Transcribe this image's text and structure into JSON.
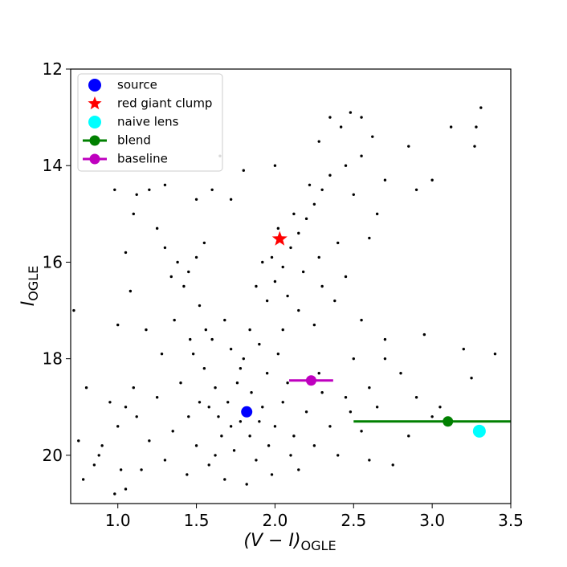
{
  "chart_data": {
    "type": "scatter",
    "xlabel": "(V − I)",
    "xlabel_sub": "OGLE",
    "ylabel": "I",
    "ylabel_sub": "OGLE",
    "xlim": [
      0.7,
      3.5
    ],
    "ylim": [
      21,
      12
    ],
    "xticks": [
      {
        "value": 1,
        "label": "1.0"
      },
      1.5,
      {
        "value": 2,
        "label": "2.0"
      },
      2.5,
      {
        "value": 3,
        "label": "3.0"
      },
      3.5
    ],
    "yticks": [
      12,
      14,
      16,
      18,
      20
    ],
    "legend": "upper left",
    "series": [
      {
        "color": "#000000",
        "marker": "dot",
        "x": [
          1.55,
          1.62,
          1.7,
          1.78,
          1.85,
          1.92,
          2.0,
          1.66,
          1.74,
          1.88,
          1.45,
          1.5,
          1.58,
          1.95,
          2.05,
          2.12,
          1.8,
          1.72,
          1.6,
          1.9,
          1.4,
          1.35,
          1.3,
          2.2,
          2.25,
          2.3,
          2.15,
          1.98,
          1.68,
          1.82,
          1.52,
          1.64,
          1.76,
          1.84,
          1.96,
          2.08,
          1.48,
          1.56,
          1.68,
          1.84,
          2.02,
          1.25,
          1.2,
          1.15,
          2.35,
          2.4,
          2.28,
          1.62,
          1.9,
          1.72,
          1.78,
          1.58,
          2.1,
          1.44,
          1.36,
          1.52,
          1.42,
          1.38,
          1.3,
          1.34,
          1.46,
          1.28,
          1.1,
          1.05,
          1.0,
          0.95,
          0.9,
          0.85,
          1.02,
          1.12,
          0.75,
          0.8,
          0.72,
          0.98,
          1.05,
          0.88,
          0.78,
          1.18,
          1.08,
          1.0,
          1.1,
          1.12,
          1.2,
          1.25,
          1.05,
          1.3,
          0.98,
          1.6,
          1.65,
          1.5,
          1.95,
          2.0,
          2.05,
          1.98,
          2.1,
          2.15,
          2.2,
          2.25,
          2.3,
          2.35,
          2.08,
          2.18,
          2.28,
          2.4,
          2.38,
          2.45,
          1.92,
          2.02,
          2.12,
          2.22,
          2.45,
          2.55,
          2.5,
          2.42,
          2.62,
          2.48,
          2.55,
          2.7,
          2.65,
          2.6,
          2.55,
          2.7,
          2.8,
          2.65,
          2.85,
          2.75,
          3.0,
          2.95,
          3.2,
          3.4,
          2.9,
          3.25,
          3.05,
          2.6,
          2.5,
          2.55,
          2.6,
          2.45,
          2.48,
          2.7,
          3.12,
          3.28,
          3.31,
          3.27,
          2.85,
          2.9,
          3.0,
          2.28,
          2.35,
          1.8,
          2.0,
          1.72,
          2.15,
          2.25,
          2.3,
          1.88,
          2.05,
          1.5,
          1.45,
          1.55
        ],
        "y": [
          18.2,
          18.6,
          18.9,
          19.3,
          18.7,
          19.0,
          19.4,
          19.6,
          19.9,
          20.1,
          19.2,
          19.8,
          20.2,
          18.3,
          18.9,
          19.6,
          18.0,
          17.8,
          17.6,
          17.7,
          18.5,
          19.5,
          20.1,
          19.1,
          19.8,
          18.7,
          20.3,
          20.4,
          20.5,
          20.6,
          18.9,
          19.2,
          18.5,
          19.6,
          19.8,
          18.5,
          17.9,
          17.4,
          17.2,
          17.4,
          17.9,
          18.8,
          19.7,
          20.3,
          19.4,
          20.0,
          18.3,
          20.0,
          19.3,
          19.4,
          18.2,
          19.0,
          20.0,
          20.4,
          17.2,
          16.9,
          16.5,
          16.0,
          15.7,
          16.3,
          17.6,
          17.9,
          18.6,
          19.0,
          19.4,
          18.9,
          19.8,
          20.2,
          20.3,
          19.2,
          19.7,
          18.6,
          17.0,
          20.8,
          20.7,
          20.0,
          20.5,
          17.4,
          16.6,
          17.3,
          15.0,
          14.6,
          14.5,
          15.3,
          15.8,
          14.4,
          14.5,
          14.5,
          13.8,
          14.7,
          16.8,
          16.4,
          16.1,
          15.9,
          15.7,
          15.4,
          15.1,
          14.8,
          14.5,
          14.2,
          16.7,
          16.2,
          15.9,
          15.6,
          16.8,
          16.3,
          16.0,
          15.3,
          15.0,
          14.4,
          14.0,
          13.8,
          14.6,
          13.2,
          13.4,
          12.9,
          13.0,
          14.3,
          15.0,
          15.5,
          17.2,
          17.6,
          18.3,
          19.0,
          19.6,
          20.2,
          19.2,
          17.5,
          17.8,
          17.9,
          18.8,
          18.4,
          19.0,
          18.6,
          18.0,
          19.5,
          20.1,
          18.8,
          19.1,
          18.0,
          13.2,
          13.2,
          12.8,
          13.6,
          13.6,
          14.5,
          14.3,
          13.5,
          13.0,
          14.1,
          14.0,
          14.7,
          17.0,
          17.3,
          16.5,
          16.5,
          17.4,
          15.9,
          16.2,
          15.6
        ]
      },
      {
        "name": "source",
        "color": "#0000ff",
        "marker": "circle",
        "x": [
          1.82
        ],
        "y": [
          19.1
        ]
      },
      {
        "name": "red giant clump",
        "color": "#ff0000",
        "marker": "star",
        "x": [
          2.03
        ],
        "y": [
          15.52
        ]
      },
      {
        "name": "naive lens",
        "color": "#00ffff",
        "marker": "circle",
        "x": [
          3.3
        ],
        "y": [
          19.5
        ]
      },
      {
        "name": "blend",
        "color": "#008000",
        "marker": "errorbar",
        "x": [
          3.1
        ],
        "y": [
          19.3
        ],
        "xerr": [
          0.6
        ],
        "yerr": [
          0.1
        ]
      },
      {
        "name": "baseline",
        "color": "#bf00bf",
        "marker": "errorbar",
        "x": [
          2.23
        ],
        "y": [
          18.45
        ],
        "xerr": [
          0.14
        ],
        "yerr": [
          0.05
        ]
      }
    ]
  }
}
